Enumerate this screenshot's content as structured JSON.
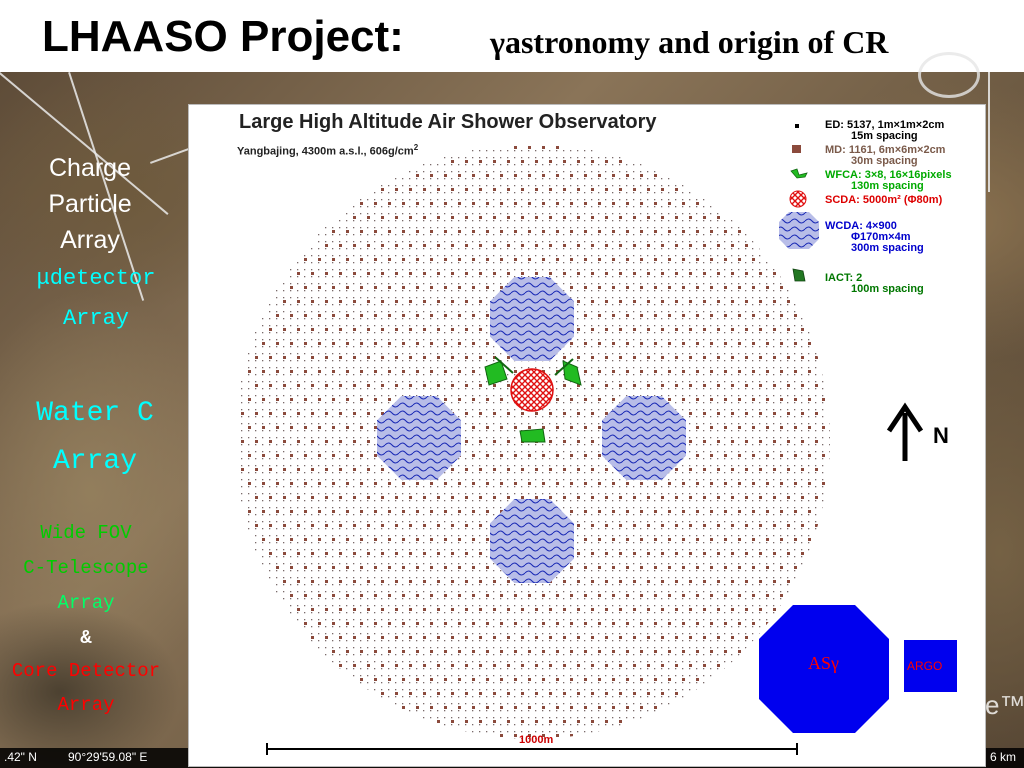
{
  "title": {
    "main": "LHAASO  Project:",
    "subtitle": "γastronomy and origin of CR"
  },
  "side_labels": {
    "charge_particle": [
      "Charge",
      "Particle",
      "Array"
    ],
    "mu_detector": [
      "μdetector",
      "Array"
    ],
    "water_c": [
      "Water C",
      "Array"
    ],
    "wide_fov": [
      "Wide FOV",
      "C-Telescope",
      "Array",
      "&"
    ],
    "core_detector": [
      "Core Detector",
      "Array"
    ]
  },
  "coordinates": {
    "lat": ".42\" N",
    "lon": "90°29'59.08\" E",
    "right_mark": "6 km",
    "edge_mark": "e™"
  },
  "diagram": {
    "title": "Large High Altitude Air Shower Observatory",
    "site": "Yangbajing, 4300m a.s.l., 606g/cm",
    "site_sup": "2",
    "compass_label": "N",
    "scale_label": "1000m",
    "as_gamma_label": "ASγ",
    "argo_label": "ARGO"
  },
  "legend": [
    {
      "id": "ed",
      "icon": "black-square",
      "color": "#000000",
      "line1": "ED: 5137, 1m×1m×2cm",
      "line2": "15m spacing"
    },
    {
      "id": "md",
      "icon": "brown-square",
      "color": "#8b5a4a",
      "line1": "MD: 1161, 6m×6m×2cm",
      "line2": "30m spacing"
    },
    {
      "id": "wfca",
      "icon": "telescope-green",
      "color": "#22bb22",
      "line1": "WFCA: 3×8, 16×16pixels",
      "line2": "130m spacing"
    },
    {
      "id": "scda",
      "icon": "red-hatched-circle",
      "color": "#dd0000",
      "line1": "SCDA: 5000m² (Φ80m)",
      "line2": ""
    },
    {
      "id": "wcda",
      "icon": "blue-wavy-octagon",
      "color": "#0000cc",
      "line1": "WCDA: 4×900",
      "line2": "Φ170m×4m",
      "line3": "300m spacing"
    },
    {
      "id": "iact",
      "icon": "telescope-dark-green",
      "color": "#227722",
      "line1": "IACT: 2",
      "line2": "100m spacing"
    }
  ],
  "colors": {
    "ed_dot": "#7a6a6a",
    "md_square": "#8b4a3c",
    "wcda_fill": "#b8bde8",
    "wcda_wave": "#1b2bb5",
    "telescope": "#22bb22",
    "scda": "#e01010",
    "as_gamma": "#0000ee",
    "as_gamma_text": "#ff0000",
    "argo": "#0000ee",
    "argo_text": "#ff0000",
    "wide_fov_text": "#00cc00",
    "core_text": "#ff0000",
    "cyan_text": "#00ffff",
    "white_text": "#ffffff"
  }
}
